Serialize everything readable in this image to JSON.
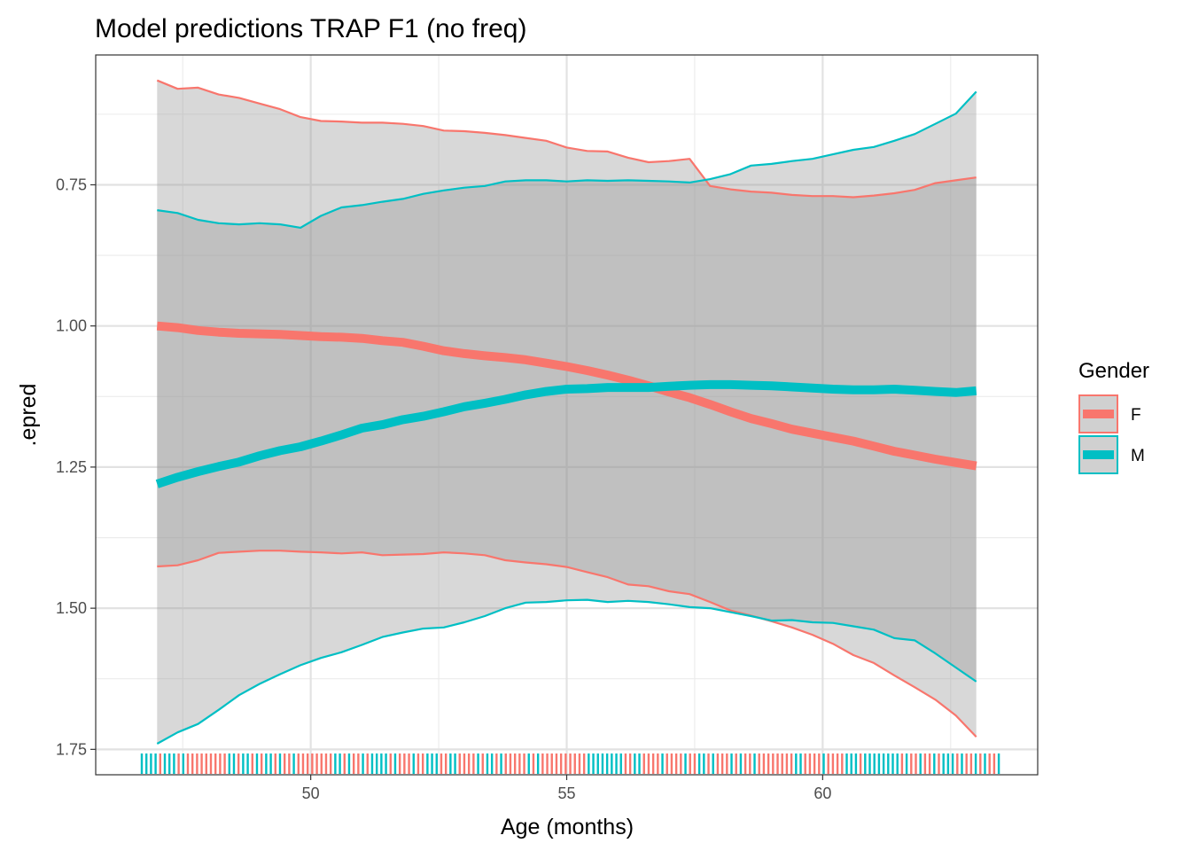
{
  "chart_data": {
    "type": "line",
    "title": "Model predictions TRAP F1 (no freq)",
    "xlabel": "Age (months)",
    "ylabel": ".epred",
    "xlim": [
      45.8,
      64.2
    ],
    "ylim": [
      0.52,
      1.795
    ],
    "y_reversed": true,
    "x_ticks": [
      50,
      55,
      60
    ],
    "x_tick_labels": [
      "50",
      "55",
      "60"
    ],
    "y_ticks": [
      0.75,
      1.0,
      1.25,
      1.5,
      1.75
    ],
    "y_tick_labels": [
      "0.75",
      "1.00",
      "1.25",
      "1.50",
      "1.75"
    ],
    "grid": true,
    "legend": {
      "title": "Gender",
      "position": "right",
      "entries": [
        {
          "label": "F",
          "color": "#F8766D"
        },
        {
          "label": "M",
          "color": "#00BFC4"
        }
      ]
    },
    "x": [
      47,
      47.4,
      47.8,
      48.2,
      48.6,
      49,
      49.4,
      49.8,
      50.2,
      50.6,
      51,
      51.4,
      51.8,
      52.2,
      52.6,
      53,
      53.4,
      53.8,
      54.2,
      54.6,
      55,
      55.4,
      55.8,
      56.2,
      56.6,
      57,
      57.4,
      57.8,
      58.2,
      58.6,
      59,
      59.4,
      59.8,
      60.2,
      60.6,
      61,
      61.4,
      61.8,
      62.2,
      62.6,
      63
    ],
    "series": [
      {
        "name": "F",
        "color": "#F8766D",
        "values": [
          1.0,
          1.003,
          1.008,
          1.011,
          1.013,
          1.014,
          1.015,
          1.017,
          1.019,
          1.02,
          1.022,
          1.026,
          1.029,
          1.036,
          1.044,
          1.049,
          1.053,
          1.056,
          1.06,
          1.066,
          1.072,
          1.079,
          1.087,
          1.096,
          1.106,
          1.117,
          1.127,
          1.139,
          1.152,
          1.164,
          1.173,
          1.183,
          1.19,
          1.197,
          1.204,
          1.213,
          1.222,
          1.229,
          1.236,
          1.242,
          1.248
        ],
        "lower": [
          0.565,
          0.58,
          0.578,
          0.59,
          0.596,
          0.606,
          0.616,
          0.63,
          0.637,
          0.638,
          0.64,
          0.64,
          0.642,
          0.646,
          0.654,
          0.655,
          0.658,
          0.662,
          0.667,
          0.672,
          0.684,
          0.69,
          0.691,
          0.702,
          0.71,
          0.708,
          0.704,
          0.752,
          0.758,
          0.762,
          0.764,
          0.768,
          0.77,
          0.77,
          0.772,
          0.769,
          0.765,
          0.759,
          0.747,
          0.742,
          0.737
        ],
        "upper": [
          1.426,
          1.424,
          1.415,
          1.402,
          1.4,
          1.398,
          1.398,
          1.4,
          1.401,
          1.403,
          1.401,
          1.406,
          1.405,
          1.404,
          1.401,
          1.403,
          1.406,
          1.415,
          1.419,
          1.422,
          1.427,
          1.436,
          1.445,
          1.458,
          1.461,
          1.47,
          1.475,
          1.489,
          1.504,
          1.513,
          1.523,
          1.534,
          1.547,
          1.563,
          1.583,
          1.597,
          1.619,
          1.64,
          1.662,
          1.69,
          1.728
        ]
      },
      {
        "name": "M",
        "color": "#00BFC4",
        "values": [
          1.28,
          1.268,
          1.258,
          1.249,
          1.241,
          1.23,
          1.221,
          1.214,
          1.204,
          1.193,
          1.181,
          1.175,
          1.166,
          1.16,
          1.152,
          1.143,
          1.137,
          1.13,
          1.122,
          1.116,
          1.112,
          1.111,
          1.109,
          1.109,
          1.109,
          1.107,
          1.105,
          1.104,
          1.104,
          1.105,
          1.106,
          1.108,
          1.11,
          1.112,
          1.113,
          1.113,
          1.112,
          1.114,
          1.116,
          1.118,
          1.115
        ],
        "lower": [
          0.795,
          0.8,
          0.812,
          0.818,
          0.82,
          0.818,
          0.82,
          0.826,
          0.805,
          0.79,
          0.786,
          0.78,
          0.775,
          0.766,
          0.76,
          0.755,
          0.752,
          0.744,
          0.742,
          0.742,
          0.744,
          0.742,
          0.743,
          0.742,
          0.743,
          0.744,
          0.746,
          0.74,
          0.731,
          0.716,
          0.713,
          0.708,
          0.704,
          0.696,
          0.688,
          0.683,
          0.672,
          0.66,
          0.642,
          0.624,
          0.585
        ],
        "upper": [
          1.74,
          1.72,
          1.705,
          1.68,
          1.654,
          1.634,
          1.617,
          1.601,
          1.588,
          1.578,
          1.565,
          1.551,
          1.543,
          1.536,
          1.534,
          1.525,
          1.514,
          1.5,
          1.49,
          1.489,
          1.486,
          1.485,
          1.489,
          1.487,
          1.489,
          1.493,
          1.498,
          1.5,
          1.507,
          1.514,
          1.522,
          1.521,
          1.525,
          1.526,
          1.532,
          1.538,
          1.553,
          1.557,
          1.58,
          1.605,
          1.63
        ]
      }
    ],
    "rug": {
      "F": [
        47.05,
        47.45,
        47.6,
        47.75,
        47.9,
        48.0,
        48.1,
        48.2,
        48.3,
        48.6,
        48.85,
        49.05,
        49.3,
        49.55,
        49.75,
        49.9,
        50.0,
        50.1,
        50.2,
        50.3,
        50.4,
        50.65,
        50.9,
        51.1,
        51.55,
        51.75,
        51.85,
        51.95,
        52.15,
        52.6,
        52.9,
        53.05,
        53.2,
        53.35,
        53.65,
        53.8,
        53.9,
        54.0,
        54.1,
        54.2,
        54.35,
        54.55,
        54.65,
        54.75,
        54.95,
        55.05,
        55.2,
        55.3,
        56.2,
        56.55,
        56.75,
        57.0,
        57.2,
        57.45,
        57.75,
        58.0,
        58.15,
        58.3,
        58.55,
        58.8,
        58.9,
        59.0,
        59.15,
        59.25,
        59.4,
        59.65,
        59.8,
        59.95,
        60.1,
        60.2,
        60.35,
        60.75,
        61.55,
        61.75,
        61.85,
        62.05,
        62.25,
        62.3,
        62.65,
        62.85,
        63.1,
        63.3
      ]
    }
  }
}
